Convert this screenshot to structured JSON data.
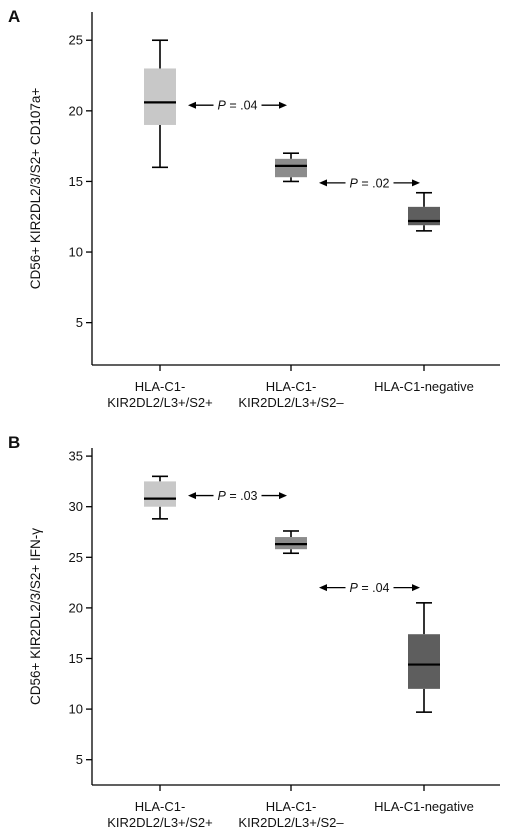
{
  "chart_data": [
    {
      "panel": "A",
      "type": "box",
      "ylabel": "CD56+ KIR2DL2/3/S2+ CD107a+",
      "ylim": [
        2,
        27
      ],
      "yticks": [
        5,
        10,
        15,
        20,
        25
      ],
      "categories": [
        [
          "HLA-C1-",
          "KIR2DL2/L3+/S2+"
        ],
        [
          "HLA-C1-",
          "KIR2DL2/L3+/S2–"
        ],
        [
          "HLA-C1-negative"
        ]
      ],
      "boxes": [
        {
          "min": 16,
          "q1": 19,
          "median": 20.6,
          "q3": 23,
          "max": 25,
          "color": "#c8c8c8"
        },
        {
          "min": 15,
          "q1": 15.3,
          "median": 16.1,
          "q3": 16.6,
          "max": 17,
          "color": "#8c8c8c"
        },
        {
          "min": 11.5,
          "q1": 11.9,
          "median": 12.2,
          "q3": 13.2,
          "max": 14.2,
          "color": "#5e5e5e"
        }
      ],
      "comparisons": [
        {
          "between": [
            0,
            1
          ],
          "y": 20.4,
          "p_letter": "P",
          "p_value": " = .04"
        },
        {
          "between": [
            1,
            2
          ],
          "y": 14.9,
          "p_letter": "P",
          "p_value": " = .02"
        }
      ]
    },
    {
      "panel": "B",
      "type": "box",
      "ylabel": "CD56+ KIR2DL2/3/S2+ IFN-γ",
      "ylim": [
        2.5,
        35.8
      ],
      "yticks": [
        5,
        10,
        15,
        20,
        25,
        30,
        35
      ],
      "categories": [
        [
          "HLA-C1-",
          "KIR2DL2/L3+/S2+"
        ],
        [
          "HLA-C1-",
          "KIR2DL2/L3+/S2–"
        ],
        [
          "HLA-C1-negative"
        ]
      ],
      "boxes": [
        {
          "min": 28.8,
          "q1": 30,
          "median": 30.8,
          "q3": 32.5,
          "max": 33,
          "color": "#c8c8c8"
        },
        {
          "min": 25.4,
          "q1": 25.8,
          "median": 26.3,
          "q3": 27,
          "max": 27.6,
          "color": "#8c8c8c"
        },
        {
          "min": 9.7,
          "q1": 12,
          "median": 14.4,
          "q3": 17.4,
          "max": 20.5,
          "color": "#5e5e5e"
        }
      ],
      "comparisons": [
        {
          "between": [
            0,
            1
          ],
          "y": 31.1,
          "p_letter": "P",
          "p_value": " = .03"
        },
        {
          "between": [
            1,
            2
          ],
          "y": 22,
          "p_letter": "P",
          "p_value": " = .04"
        }
      ]
    }
  ]
}
